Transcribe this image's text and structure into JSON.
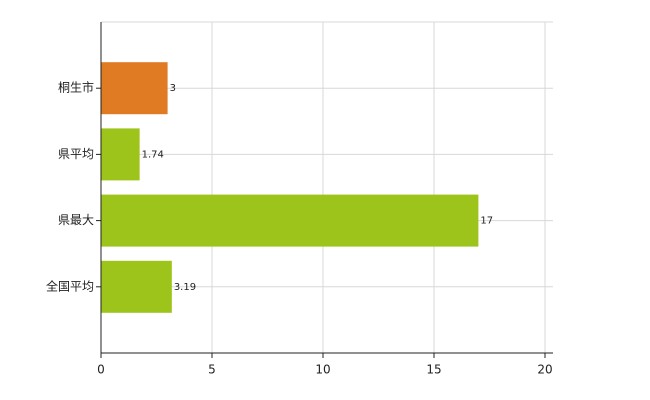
{
  "chart_data": {
    "type": "hbar",
    "categories": [
      "桐生市",
      "県平均",
      "県最大",
      "全国平均"
    ],
    "values": [
      3,
      1.74,
      17,
      3.19
    ],
    "colors": [
      "#e07b24",
      "#9dc41a",
      "#9dc41a",
      "#9dc41a"
    ],
    "xlim": [
      0,
      20
    ],
    "xticks": [
      0,
      5,
      10,
      15,
      20
    ],
    "grid": true
  }
}
